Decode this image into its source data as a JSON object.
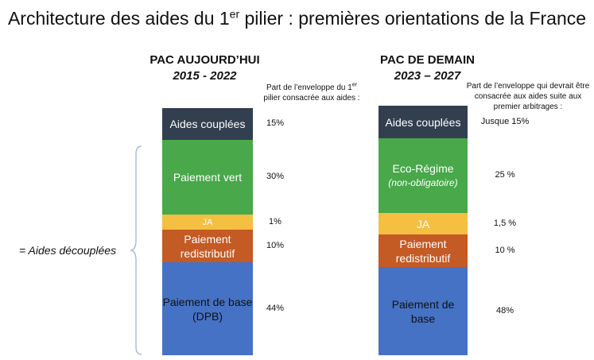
{
  "title": {
    "main": "Architecture des aides du 1",
    "sup": "er",
    "rest": " pilier : premières orientations de la France"
  },
  "left_column": {
    "heading": "PAC AUJOURD’HUI",
    "period": "2015 - 2022",
    "note_line1": "Part de l’enveloppe du 1",
    "note_sup": "er",
    "note_line2": "pilier consacrée aux aides :",
    "segments": [
      {
        "label": "Aides couplées",
        "sub": "",
        "color": "#323f4f",
        "text_color": "#ffffff",
        "share": "15%"
      },
      {
        "label": "Paiement vert",
        "sub": "",
        "color": "#48a84a",
        "text_color": "#ffffff",
        "share": "30%"
      },
      {
        "label": "JA",
        "sub": "",
        "color": "#f5bf42",
        "text_color": "#ffffff",
        "share": "1%"
      },
      {
        "label": "Paiement redistributif",
        "sub": "",
        "color": "#c45a24",
        "text_color": "#ffffff",
        "share": "10%"
      },
      {
        "label": "Paiement de base (DPB)",
        "sub": "",
        "color": "#4572c4",
        "text_color": "#111111",
        "share": "44%"
      }
    ]
  },
  "right_column": {
    "heading": "PAC DE DEMAIN",
    "period": "2023 – 2027",
    "note": "Part de l’enveloppe qui devrait être consacrée aux aides suite aux premier arbitrages :",
    "segments": [
      {
        "label": "Aides couplées",
        "sub": "",
        "color": "#323f4f",
        "text_color": "#ffffff",
        "share": "Jusque 15%"
      },
      {
        "label": "Eco-Régime",
        "sub": "(non-obligatoire)",
        "color": "#48a84a",
        "text_color": "#ffffff",
        "share": "25 %"
      },
      {
        "label": "JA",
        "sub": "",
        "color": "#f5bf42",
        "text_color": "#ffffff",
        "share": "1,5 %"
      },
      {
        "label": "Paiement redistributif",
        "sub": "",
        "color": "#c45a24",
        "text_color": "#ffffff",
        "share": "10 %"
      },
      {
        "label": "Paiement de base",
        "sub": "",
        "color": "#4572c4",
        "text_color": "#111111",
        "share": "48%"
      }
    ]
  },
  "decoupled_label": "= Aides découplées",
  "brace_color": "#a9bde0"
}
